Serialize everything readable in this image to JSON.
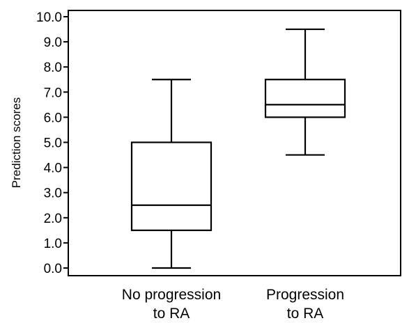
{
  "chart_data": {
    "type": "box",
    "title": "",
    "xlabel": "",
    "ylabel": "Prediction scores",
    "ylim": [
      -0.3,
      10.0
    ],
    "yticks": [
      "0.0",
      "1.0",
      "2.0",
      "3.0",
      "4.0",
      "5.0",
      "6.0",
      "7.0",
      "8.0",
      "9.0",
      "10.0"
    ],
    "ytick_values": [
      0,
      1,
      2,
      3,
      4,
      5,
      6,
      7,
      8,
      9,
      10
    ],
    "grid": false,
    "legend": "none",
    "color": "#000000",
    "groups": [
      {
        "label": [
          "No progression",
          "to RA"
        ],
        "min": 0.0,
        "q1": 1.5,
        "median": 2.5,
        "q3": 5.0,
        "max": 7.5
      },
      {
        "label": [
          "Progression",
          "to RA"
        ],
        "min": 4.5,
        "q1": 6.0,
        "median": 6.5,
        "q3": 7.5,
        "max": 9.5
      }
    ]
  }
}
